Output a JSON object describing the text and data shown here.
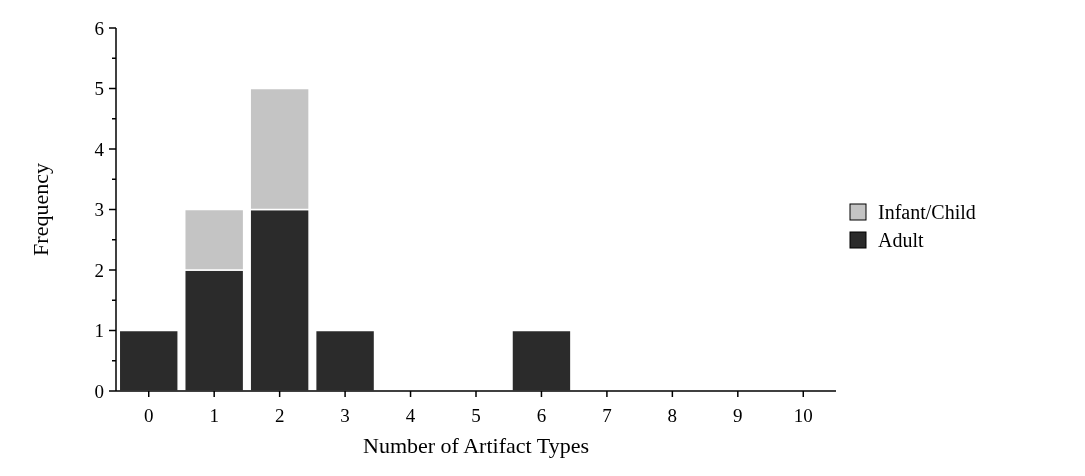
{
  "chart_data": {
    "type": "bar",
    "stacked": true,
    "xlabel": "Number of Artifact Types",
    "ylabel": "Frequency",
    "categories": [
      "0",
      "1",
      "2",
      "3",
      "4",
      "5",
      "6",
      "7",
      "8",
      "9",
      "10"
    ],
    "series": [
      {
        "name": "Adult",
        "color": "#2b2b2b",
        "values": [
          1,
          2,
          3,
          1,
          0,
          0,
          1,
          0,
          0,
          0,
          0
        ]
      },
      {
        "name": "Infant/Child",
        "color": "#c4c4c4",
        "values": [
          0,
          1,
          2,
          0,
          0,
          0,
          0,
          0,
          0,
          0,
          0
        ]
      }
    ],
    "ylim": [
      0,
      6
    ],
    "yticks": [
      0,
      {
        "value": 0.5,
        "label": null
      },
      1,
      {
        "value": 1.5,
        "label": null
      },
      2,
      {
        "value": 2.5,
        "label": null
      },
      3,
      {
        "value": 3.5,
        "label": null
      },
      4,
      {
        "value": 4.5,
        "label": null
      },
      5,
      {
        "value": 5.5,
        "label": null
      },
      6
    ],
    "grid": false,
    "legend": "right"
  }
}
